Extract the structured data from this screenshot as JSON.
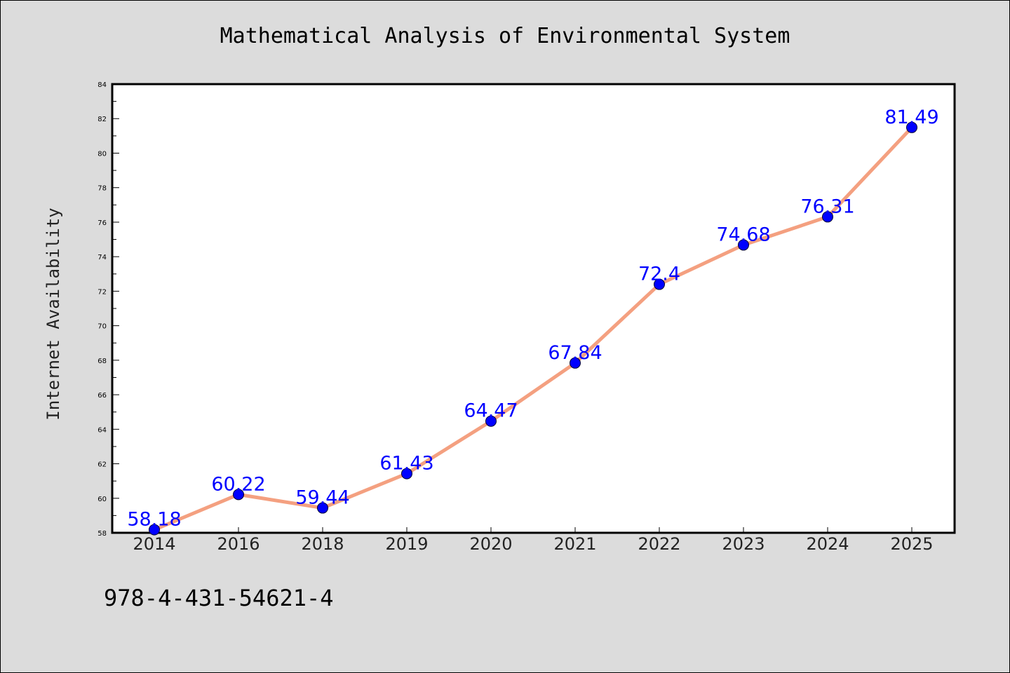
{
  "chart_data": {
    "type": "line",
    "title": "Mathematical Analysis of Environmental System",
    "xlabel": "",
    "ylabel": "Internet Availability",
    "categories": [
      "2014",
      "2016",
      "2018",
      "2019",
      "2020",
      "2021",
      "2022",
      "2023",
      "2024",
      "2025"
    ],
    "series": [
      {
        "values": [
          58.18,
          60.22,
          59.44,
          61.43,
          64.47,
          67.84,
          72.4,
          74.68,
          76.31,
          81.49
        ],
        "labels": [
          "58.18",
          "60.22",
          "59.44",
          "61.43",
          "64.47",
          "67.84",
          "72.4",
          "74.68",
          "76.31",
          "81.49"
        ],
        "line_color": "#f4a080",
        "marker_color": "#0000ff"
      }
    ],
    "ylim": [
      58,
      84
    ],
    "yticks": [
      "58",
      "60",
      "62",
      "64",
      "66",
      "68",
      "70",
      "72",
      "74",
      "76",
      "78",
      "80",
      "82",
      "84"
    ],
    "grid": false,
    "background_color": "#ffffff",
    "page_color": "#dcdcdc"
  },
  "footer": {
    "code": "978-4-431-54621-4"
  }
}
